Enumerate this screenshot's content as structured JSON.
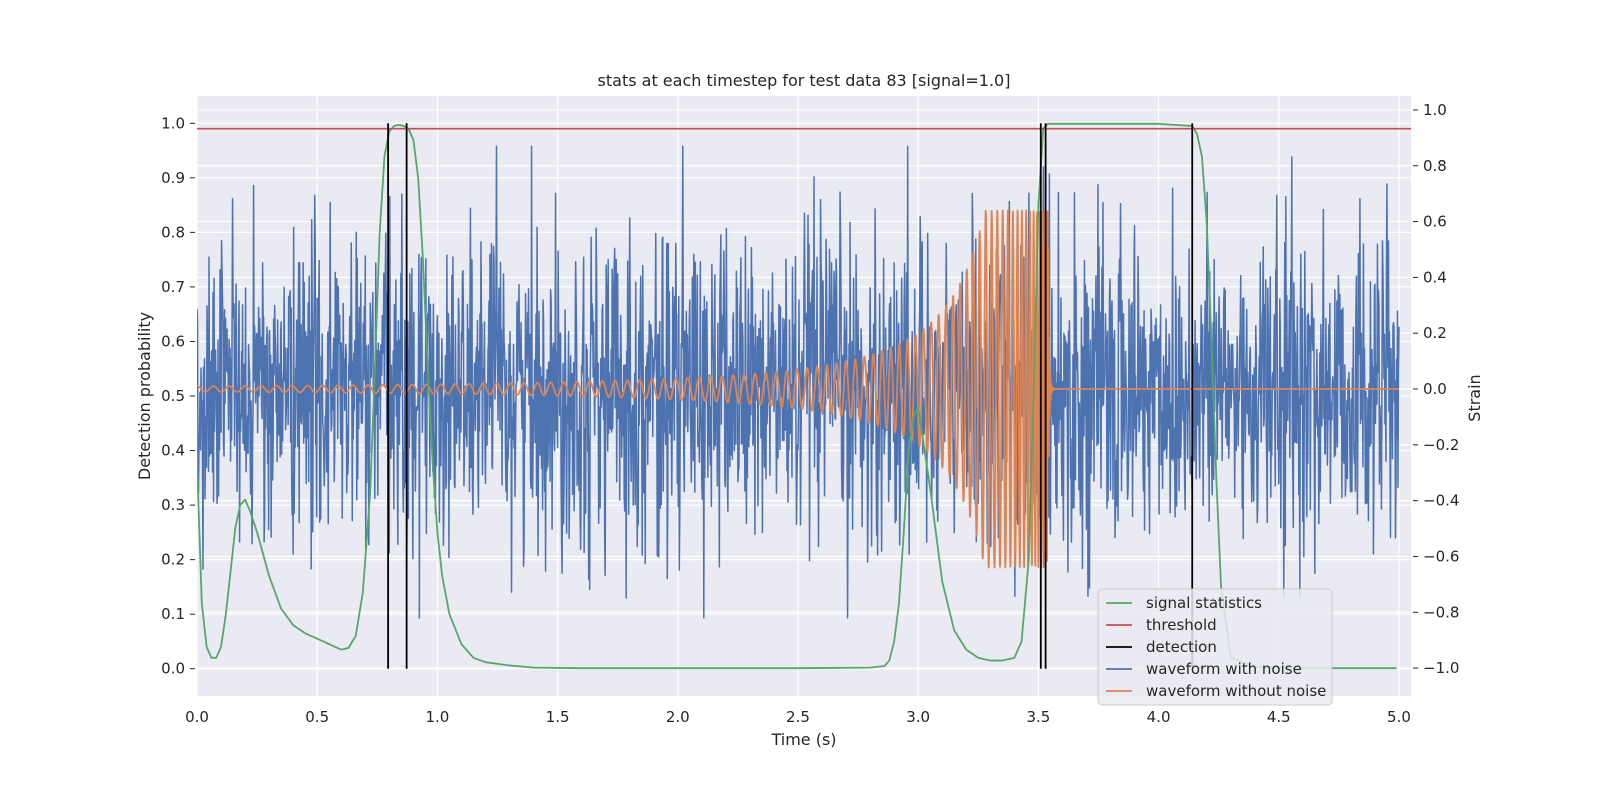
{
  "chart_data": {
    "type": "line",
    "title": "stats at each timestep for test data 83 [signal=1.0]",
    "xlabel": "Time (s)",
    "ylabel": "Detection probability",
    "ylabel_right": "Strain",
    "xlim": [
      0.0,
      5.05
    ],
    "ylim": [
      -0.05,
      1.05
    ],
    "ylim_right": [
      -1.1,
      1.05
    ],
    "xticks": [
      "0.0",
      "0.5",
      "1.0",
      "1.5",
      "2.0",
      "2.5",
      "3.0",
      "3.5",
      "4.0",
      "4.5",
      "5.0"
    ],
    "yticks": [
      "0.0",
      "0.1",
      "0.2",
      "0.3",
      "0.4",
      "0.5",
      "0.6",
      "0.7",
      "0.8",
      "0.9",
      "1.0"
    ],
    "yticks_right": [
      "−1.0",
      "−0.8",
      "−0.6",
      "−0.4",
      "−0.2",
      "0.0",
      "0.2",
      "0.4",
      "0.6",
      "0.8",
      "1.0"
    ],
    "grid": true,
    "legend_position": "lower-right",
    "colors": {
      "signal_statistics": "#55a868",
      "threshold": "#c44e52",
      "detection": "#000000",
      "waveform_with_noise": "#4c72b0",
      "waveform_without_noise": "#dd8452"
    },
    "series": [
      {
        "name": "signal statistics",
        "axis": "left",
        "x": [
          0.0,
          0.02,
          0.04,
          0.06,
          0.08,
          0.1,
          0.12,
          0.14,
          0.16,
          0.18,
          0.2,
          0.22,
          0.25,
          0.3,
          0.35,
          0.4,
          0.45,
          0.5,
          0.55,
          0.6,
          0.63,
          0.66,
          0.69,
          0.72,
          0.74,
          0.76,
          0.78,
          0.8,
          0.82,
          0.84,
          0.86,
          0.88,
          0.9,
          0.92,
          0.94,
          0.96,
          0.98,
          1.0,
          1.02,
          1.05,
          1.1,
          1.15,
          1.2,
          1.3,
          1.4,
          1.6,
          2.0,
          2.5,
          2.8,
          2.86,
          2.88,
          2.9,
          2.92,
          2.94,
          2.96,
          2.98,
          3.0,
          3.05,
          3.1,
          3.15,
          3.2,
          3.25,
          3.3,
          3.35,
          3.4,
          3.43,
          3.46,
          3.48,
          3.5,
          3.52,
          3.54,
          3.56,
          3.6,
          4.0,
          4.14,
          4.16,
          4.18,
          4.2,
          4.22,
          4.24,
          4.26,
          4.3,
          4.4,
          4.6,
          4.8,
          4.99
        ],
        "y": [
          0.38,
          0.12,
          0.04,
          0.02,
          0.02,
          0.04,
          0.1,
          0.18,
          0.26,
          0.3,
          0.31,
          0.29,
          0.25,
          0.17,
          0.11,
          0.08,
          0.065,
          0.055,
          0.045,
          0.035,
          0.038,
          0.06,
          0.14,
          0.32,
          0.55,
          0.8,
          0.94,
          0.985,
          0.995,
          0.997,
          0.995,
          0.99,
          0.97,
          0.9,
          0.75,
          0.55,
          0.38,
          0.25,
          0.17,
          0.1,
          0.045,
          0.02,
          0.012,
          0.006,
          0.002,
          0.001,
          0.001,
          0.001,
          0.002,
          0.005,
          0.015,
          0.05,
          0.12,
          0.25,
          0.4,
          0.46,
          0.48,
          0.33,
          0.16,
          0.07,
          0.035,
          0.02,
          0.015,
          0.015,
          0.02,
          0.05,
          0.2,
          0.5,
          0.85,
          0.99,
          0.999,
          0.999,
          0.999,
          0.999,
          0.995,
          0.98,
          0.94,
          0.82,
          0.6,
          0.35,
          0.15,
          0.02,
          0.003,
          0.001,
          0.001,
          0.001
        ]
      },
      {
        "name": "threshold",
        "axis": "left",
        "x": [
          0.0,
          5.05
        ],
        "y": [
          0.99,
          0.99
        ]
      },
      {
        "name": "detection",
        "axis": "left",
        "type": "vlines",
        "x": [
          0.795,
          0.872,
          3.51,
          3.53,
          4.14
        ],
        "ymin": 0.0,
        "ymax": 1.0
      },
      {
        "name": "waveform with noise",
        "axis": "right",
        "type": "noise",
        "t_start": 0.0,
        "t_end": 5.0,
        "sigma": 0.28,
        "peak_max": 0.87,
        "peak_min": -0.82,
        "seed": 83
      },
      {
        "name": "waveform without noise",
        "axis": "right",
        "type": "chirp",
        "t_start": 0.0,
        "t_end": 5.0,
        "merger_time": 3.54,
        "peak_amplitude": 0.64,
        "start_amplitude": 0.01
      }
    ]
  }
}
